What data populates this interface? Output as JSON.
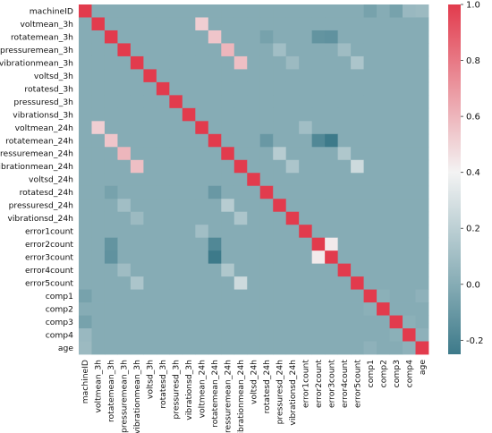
{
  "chart_data": {
    "type": "heatmap",
    "title": "",
    "xlabel": "",
    "ylabel": "",
    "labels": [
      "machineID",
      "voltmean_3h",
      "rotatemean_3h",
      "pressuremean_3h",
      "vibrationmean_3h",
      "voltsd_3h",
      "rotatesd_3h",
      "pressuresd_3h",
      "vibrationsd_3h",
      "voltmean_24h",
      "rotatemean_24h",
      "pressuremean_24h",
      "vibrationmean_24h",
      "voltsd_24h",
      "rotatesd_24h",
      "pressuresd_24h",
      "vibrationsd_24h",
      "error1count",
      "error2count",
      "error3count",
      "error4count",
      "error5count",
      "comp1",
      "comp2",
      "comp3",
      "comp4",
      "age"
    ],
    "colorbar": {
      "ticks": [
        1.0,
        0.8,
        0.6,
        0.4,
        0.2,
        0.0,
        -0.2
      ],
      "tick_labels": [
        "1.0",
        "0.8",
        "0.6",
        "0.4",
        "0.2",
        "0.0",
        "-0.2"
      ],
      "vmin": -0.25,
      "vmax": 1.0
    },
    "colormap": {
      "low": "#3d7a8a",
      "mid": "#f3f3f3",
      "high": "#e23b4d"
    },
    "base_value": 0.0,
    "diagonal_value": 1.0,
    "notable_pairs": [
      {
        "a": "voltmean_3h",
        "b": "voltmean_24h",
        "value": 0.52
      },
      {
        "a": "rotatemean_3h",
        "b": "rotatemean_24h",
        "value": 0.55
      },
      {
        "a": "pressuremean_3h",
        "b": "pressuremean_24h",
        "value": 0.6
      },
      {
        "a": "vibrationmean_3h",
        "b": "vibrationmean_24h",
        "value": 0.57
      },
      {
        "a": "error2count",
        "b": "error3count",
        "value": 0.43
      },
      {
        "a": "voltmean_24h",
        "b": "error1count",
        "value": 0.1
      },
      {
        "a": "rotatemean_24h",
        "b": "error2count",
        "value": -0.18
      },
      {
        "a": "rotatemean_24h",
        "b": "error3count",
        "value": -0.25
      },
      {
        "a": "rotatemean_3h",
        "b": "error2count",
        "value": -0.12
      },
      {
        "a": "rotatemean_3h",
        "b": "error3count",
        "value": -0.13
      },
      {
        "a": "pressuremean_24h",
        "b": "error4count",
        "value": 0.15
      },
      {
        "a": "pressuremean_3h",
        "b": "error4count",
        "value": 0.09
      },
      {
        "a": "vibrationmean_24h",
        "b": "error5count",
        "value": 0.26
      },
      {
        "a": "vibrationmean_3h",
        "b": "error5count",
        "value": 0.14
      },
      {
        "a": "rotatemean_24h",
        "b": "rotatesd_24h",
        "value": -0.1
      },
      {
        "a": "rotatemean_3h",
        "b": "rotatesd_24h",
        "value": -0.05
      },
      {
        "a": "pressuremean_24h",
        "b": "pressuresd_24h",
        "value": 0.18
      },
      {
        "a": "pressuremean_3h",
        "b": "pressuresd_24h",
        "value": 0.1
      },
      {
        "a": "vibrationmean_24h",
        "b": "vibrationsd_24h",
        "value": 0.14
      },
      {
        "a": "vibrationmean_3h",
        "b": "vibrationsd_24h",
        "value": 0.08
      },
      {
        "a": "machineID",
        "b": "comp1",
        "value": -0.05
      },
      {
        "a": "machineID",
        "b": "comp3",
        "value": -0.05
      },
      {
        "a": "machineID",
        "b": "comp4",
        "value": 0.07
      },
      {
        "a": "machineID",
        "b": "age",
        "value": 0.08
      },
      {
        "a": "comp1",
        "b": "comp2",
        "value": 0.02
      },
      {
        "a": "comp3",
        "b": "comp4",
        "value": 0.02
      },
      {
        "a": "comp4",
        "b": "age",
        "value": 0.03
      },
      {
        "a": "comp1",
        "b": "age",
        "value": 0.03
      }
    ]
  }
}
